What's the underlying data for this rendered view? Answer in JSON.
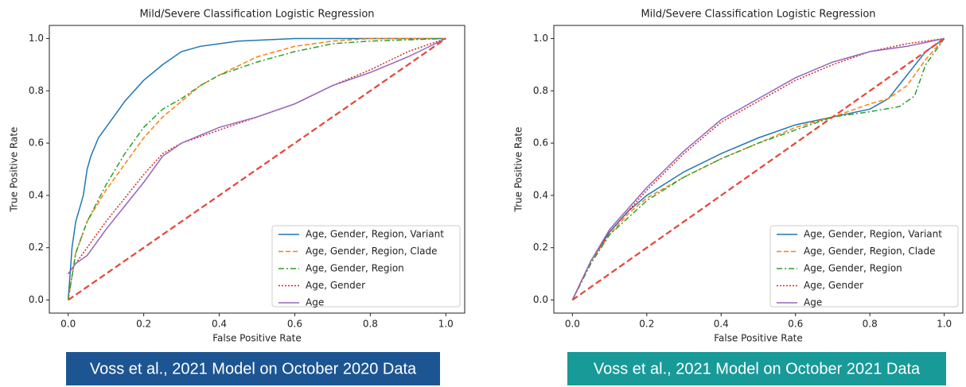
{
  "chart_data": [
    {
      "type": "line",
      "title": "Mild/Severe Classification Logistic Regression",
      "xlabel": "False Positive Rate",
      "ylabel": "True Positive Rate",
      "caption": "Voss et al., 2021 Model on October 2020 Data",
      "caption_color": "#1d5592",
      "xlim": [
        -0.05,
        1.05
      ],
      "ylim": [
        -0.05,
        1.05
      ],
      "xticks": [
        {
          "value": 0,
          "label": "0.0"
        },
        0.2,
        0.4,
        0.6,
        0.8,
        {
          "value": 1,
          "label": "1.0"
        }
      ],
      "yticks": [
        {
          "value": 0,
          "label": "0.0"
        },
        0.2,
        0.4,
        0.6,
        0.8,
        {
          "value": 1,
          "label": "1.0"
        }
      ],
      "legend": "lower right",
      "reference_line": {
        "x": [
          0,
          1
        ],
        "values": [
          0,
          1
        ],
        "color": "#e8443a"
      },
      "series": [
        {
          "name": "Age, Gender, Region, Variant",
          "color": "#1f77b4",
          "linestyle": "solid",
          "x": [
            0,
            0.005,
            0.01,
            0.02,
            0.03,
            0.04,
            0.05,
            0.06,
            0.08,
            0.1,
            0.12,
            0.15,
            0.2,
            0.25,
            0.3,
            0.35,
            0.45,
            0.6,
            1
          ],
          "values": [
            0,
            0.1,
            0.2,
            0.3,
            0.35,
            0.4,
            0.5,
            0.55,
            0.62,
            0.66,
            0.7,
            0.76,
            0.84,
            0.9,
            0.95,
            0.97,
            0.99,
            1,
            1
          ]
        },
        {
          "name": "Age, Gender, Region, Clade",
          "color": "#ff7f0e",
          "linestyle": "dashed",
          "x": [
            0,
            0.02,
            0.05,
            0.1,
            0.15,
            0.2,
            0.25,
            0.3,
            0.35,
            0.4,
            0.5,
            0.6,
            0.7,
            0.8,
            1
          ],
          "values": [
            0,
            0.18,
            0.3,
            0.42,
            0.52,
            0.62,
            0.7,
            0.76,
            0.82,
            0.86,
            0.93,
            0.97,
            0.99,
            1,
            1
          ]
        },
        {
          "name": "Age, Gender, Region",
          "color": "#2ca02c",
          "linestyle": "dashdot",
          "x": [
            0,
            0.02,
            0.05,
            0.1,
            0.15,
            0.2,
            0.25,
            0.3,
            0.35,
            0.4,
            0.5,
            0.6,
            0.7,
            0.8,
            1
          ],
          "values": [
            0,
            0.18,
            0.3,
            0.44,
            0.56,
            0.66,
            0.73,
            0.77,
            0.82,
            0.86,
            0.91,
            0.95,
            0.98,
            0.99,
            1
          ]
        },
        {
          "name": "Age, Gender",
          "color": "#d62728",
          "linestyle": "dotted",
          "x": [
            0,
            0.02,
            0.05,
            0.1,
            0.15,
            0.2,
            0.25,
            0.3,
            0.4,
            0.5,
            0.6,
            0.7,
            0.8,
            0.9,
            1
          ],
          "values": [
            0.1,
            0.14,
            0.2,
            0.3,
            0.39,
            0.48,
            0.56,
            0.6,
            0.65,
            0.7,
            0.75,
            0.82,
            0.88,
            0.95,
            1
          ]
        },
        {
          "name": "Age",
          "color": "#9467bd",
          "linestyle": "solid",
          "x": [
            0,
            0.02,
            0.05,
            0.1,
            0.15,
            0.2,
            0.25,
            0.3,
            0.4,
            0.5,
            0.6,
            0.7,
            0.8,
            0.9,
            1
          ],
          "values": [
            0.1,
            0.14,
            0.17,
            0.27,
            0.36,
            0.45,
            0.55,
            0.6,
            0.66,
            0.7,
            0.75,
            0.82,
            0.87,
            0.93,
            1
          ]
        }
      ]
    },
    {
      "type": "line",
      "title": "Mild/Severe Classification Logistic Regression",
      "xlabel": "False Positive Rate",
      "ylabel": "True Positive Rate",
      "caption": "Voss et al., 2021 Model on October 2021 Data",
      "caption_color": "#189a98",
      "xlim": [
        -0.05,
        1.05
      ],
      "ylim": [
        -0.05,
        1.05
      ],
      "xticks": [
        {
          "value": 0,
          "label": "0.0"
        },
        0.2,
        0.4,
        0.6,
        0.8,
        {
          "value": 1,
          "label": "1.0"
        }
      ],
      "yticks": [
        {
          "value": 0,
          "label": "0.0"
        },
        0.2,
        0.4,
        0.6,
        0.8,
        {
          "value": 1,
          "label": "1.0"
        }
      ],
      "legend": "lower right",
      "reference_line": {
        "x": [
          0,
          1
        ],
        "values": [
          0,
          1
        ],
        "color": "#e8443a"
      },
      "series": [
        {
          "name": "Age, Gender, Region, Variant",
          "color": "#1f77b4",
          "linestyle": "solid",
          "x": [
            0,
            0.05,
            0.1,
            0.15,
            0.2,
            0.3,
            0.4,
            0.5,
            0.6,
            0.7,
            0.8,
            0.85,
            0.9,
            0.95,
            1
          ],
          "values": [
            0,
            0.15,
            0.26,
            0.34,
            0.4,
            0.49,
            0.56,
            0.62,
            0.67,
            0.7,
            0.73,
            0.77,
            0.86,
            0.95,
            1
          ]
        },
        {
          "name": "Age, Gender, Region, Clade",
          "color": "#ff7f0e",
          "linestyle": "dashed",
          "x": [
            0,
            0.02,
            0.05,
            0.1,
            0.15,
            0.2,
            0.3,
            0.4,
            0.5,
            0.6,
            0.7,
            0.8,
            0.85,
            0.9,
            0.95,
            1
          ],
          "values": [
            0,
            0.06,
            0.15,
            0.25,
            0.33,
            0.39,
            0.47,
            0.54,
            0.6,
            0.66,
            0.7,
            0.75,
            0.77,
            0.82,
            0.92,
            1
          ]
        },
        {
          "name": "Age, Gender, Region",
          "color": "#2ca02c",
          "linestyle": "dashdot",
          "x": [
            0,
            0.05,
            0.1,
            0.2,
            0.3,
            0.4,
            0.5,
            0.6,
            0.7,
            0.8,
            0.88,
            0.92,
            0.95,
            1
          ],
          "values": [
            0,
            0.14,
            0.25,
            0.38,
            0.47,
            0.54,
            0.6,
            0.65,
            0.7,
            0.72,
            0.74,
            0.78,
            0.9,
            1
          ]
        },
        {
          "name": "Age, Gender",
          "color": "#d62728",
          "linestyle": "dotted",
          "x": [
            0,
            0.05,
            0.1,
            0.2,
            0.3,
            0.4,
            0.5,
            0.6,
            0.7,
            0.8,
            0.9,
            1
          ],
          "values": [
            0,
            0.15,
            0.26,
            0.42,
            0.56,
            0.68,
            0.76,
            0.84,
            0.9,
            0.95,
            0.98,
            1
          ]
        },
        {
          "name": "Age",
          "color": "#9467bd",
          "linestyle": "solid",
          "x": [
            0,
            0.05,
            0.1,
            0.2,
            0.3,
            0.4,
            0.5,
            0.6,
            0.7,
            0.8,
            0.9,
            1
          ],
          "values": [
            0,
            0.15,
            0.27,
            0.43,
            0.57,
            0.69,
            0.77,
            0.85,
            0.91,
            0.95,
            0.97,
            1
          ]
        }
      ]
    }
  ]
}
